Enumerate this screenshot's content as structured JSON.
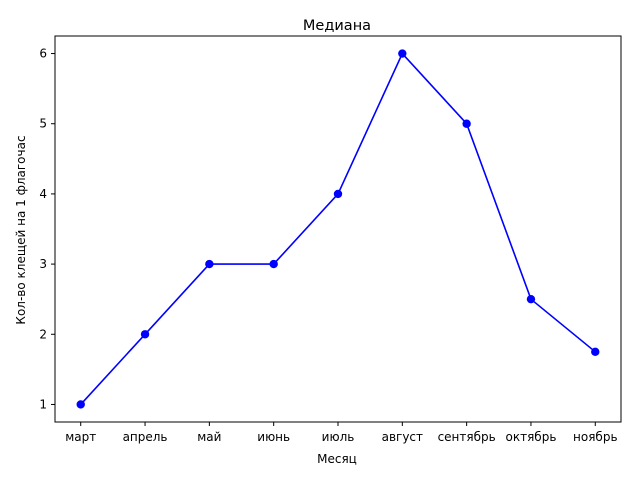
{
  "chart_data": {
    "type": "line",
    "title": "Медиана",
    "xlabel": "Месяц",
    "ylabel": "Кол-во клещей на 1 флагочас",
    "categories": [
      "март",
      "апрель",
      "май",
      "июнь",
      "июль",
      "август",
      "сентябрь",
      "октябрь",
      "ноябрь"
    ],
    "series": [
      {
        "values": [
          1,
          2,
          3,
          3,
          4,
          6,
          5,
          2.5,
          1.75
        ],
        "color": "#0000ff",
        "marker": "circle"
      }
    ],
    "yticks": [
      1,
      2,
      3,
      4,
      5,
      6
    ],
    "ylim": [
      0.75,
      6.25
    ],
    "grid": false,
    "legend": "none"
  }
}
